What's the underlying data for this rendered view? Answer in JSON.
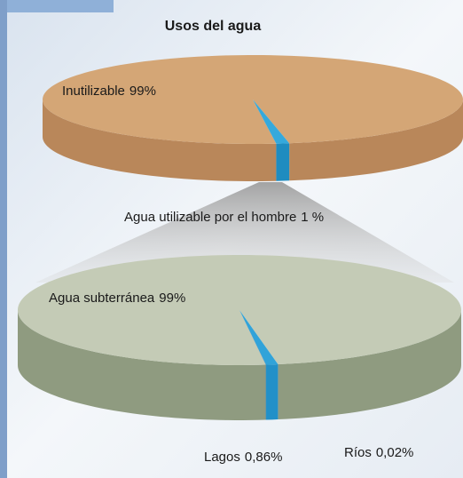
{
  "chart_data": [
    {
      "type": "pie",
      "title": "Usos del agua",
      "categories": [
        "Inutilizable",
        "Agua utilizable por el hombre"
      ],
      "values": [
        99,
        1
      ],
      "value_labels": [
        "99%",
        "1 %"
      ],
      "colors": [
        "#d4a676",
        "#35a9dc"
      ],
      "side_colors": [
        "#b9875a",
        "#1f8cc0"
      ]
    },
    {
      "type": "pie",
      "categories": [
        "Agua subterránea",
        "Lagos",
        "Ríos"
      ],
      "values": [
        99,
        0.86,
        0.02
      ],
      "value_labels": [
        "99%",
        "0,86%",
        "0,02%"
      ],
      "colors": [
        "#c4cbb6",
        "#31a3d9",
        "#1b74b0"
      ],
      "side_colors": [
        "#8f9b80",
        "#2290c8",
        "#155f92"
      ]
    }
  ]
}
